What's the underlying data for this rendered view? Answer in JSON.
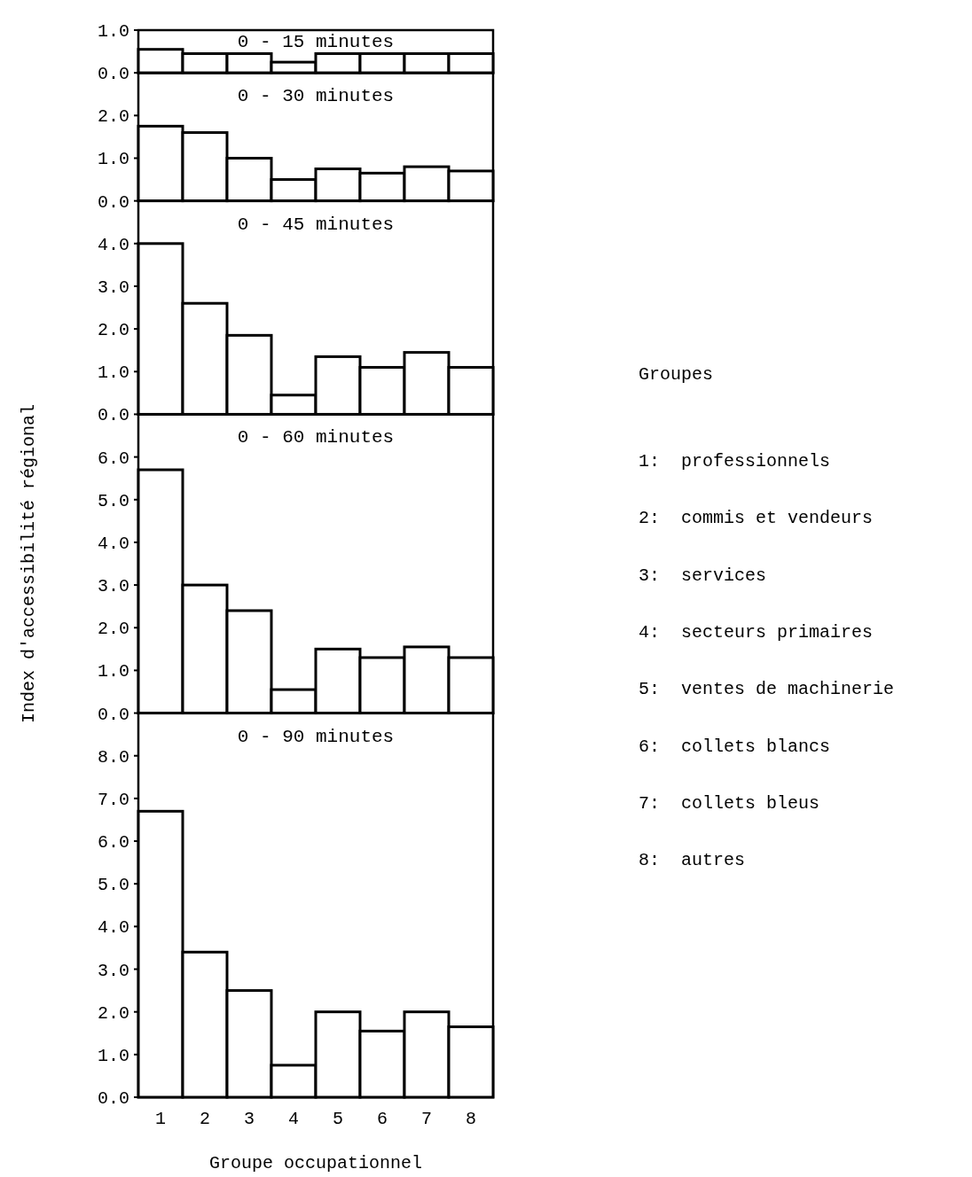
{
  "chart_data": [
    {
      "type": "bar",
      "title": "0 - 15 minutes",
      "categories": [
        "1",
        "2",
        "3",
        "4",
        "5",
        "6",
        "7",
        "8"
      ],
      "values": [
        0.55,
        0.45,
        0.45,
        0.25,
        0.45,
        0.45,
        0.45,
        0.45
      ],
      "color": "#ffffff",
      "ylim": [
        0,
        1
      ],
      "yticks": [
        {
          "value": 0,
          "label": "0.0"
        },
        {
          "value": 1,
          "label": "1.0"
        }
      ],
      "tick_labels": "y"
    },
    {
      "type": "bar",
      "title": "0 - 30 minutes",
      "categories": [
        "1",
        "2",
        "3",
        "4",
        "5",
        "6",
        "7",
        "8"
      ],
      "values": [
        1.75,
        1.6,
        1.0,
        0.5,
        0.75,
        0.65,
        0.8,
        0.7
      ],
      "color": "#ffffff",
      "ylim": [
        0,
        3
      ],
      "yticks": [
        {
          "value": 0,
          "label": "0.0"
        },
        {
          "value": 1,
          "label": "1.0"
        },
        {
          "value": 2,
          "label": "2.0"
        }
      ],
      "tick_labels": "y"
    },
    {
      "type": "bar",
      "title": "0 - 45 minutes",
      "categories": [
        "1",
        "2",
        "3",
        "4",
        "5",
        "6",
        "7",
        "8"
      ],
      "values": [
        4.0,
        2.6,
        1.85,
        0.45,
        1.35,
        1.1,
        1.45,
        1.1
      ],
      "color": "#ffffff",
      "ylim": [
        0,
        5
      ],
      "yticks": [
        {
          "value": 0,
          "label": "0.0"
        },
        {
          "value": 1,
          "label": "1.0"
        },
        {
          "value": 2,
          "label": "2.0"
        },
        {
          "value": 3,
          "label": "3.0"
        },
        {
          "value": 4,
          "label": "4.0"
        }
      ],
      "tick_labels": "y"
    },
    {
      "type": "bar",
      "title": "0 - 60 minutes",
      "categories": [
        "1",
        "2",
        "3",
        "4",
        "5",
        "6",
        "7",
        "8"
      ],
      "values": [
        5.7,
        3.0,
        2.4,
        0.55,
        1.5,
        1.3,
        1.55,
        1.3
      ],
      "color": "#ffffff",
      "ylim": [
        0,
        7
      ],
      "yticks": [
        {
          "value": 0,
          "label": "0.0"
        },
        {
          "value": 1,
          "label": "1.0"
        },
        {
          "value": 2,
          "label": "2.0"
        },
        {
          "value": 3,
          "label": "3.0"
        },
        {
          "value": 4,
          "label": "4.0"
        },
        {
          "value": 5,
          "label": "5.0"
        },
        {
          "value": 6,
          "label": "6.0"
        }
      ],
      "tick_labels": "y",
      "ylabel": "Index d'accessibilité régional"
    },
    {
      "type": "bar",
      "title": "0 - 90 minutes",
      "categories": [
        "1",
        "2",
        "3",
        "4",
        "5",
        "6",
        "7",
        "8"
      ],
      "values": [
        6.7,
        3.4,
        2.5,
        0.75,
        2.0,
        1.55,
        2.0,
        1.65
      ],
      "color": "#ffffff",
      "ylim": [
        0,
        9
      ],
      "yticks": [
        {
          "value": 0,
          "label": "0.0"
        },
        {
          "value": 1,
          "label": "1.0"
        },
        {
          "value": 2,
          "label": "2.0"
        },
        {
          "value": 3,
          "label": "3.0"
        },
        {
          "value": 4,
          "label": "4.0"
        },
        {
          "value": 5,
          "label": "5.0"
        },
        {
          "value": 6,
          "label": "6.0"
        },
        {
          "value": 7,
          "label": "7.0"
        },
        {
          "value": 8,
          "label": "8.0"
        }
      ],
      "xlabel": "Groupe occupationnel",
      "annotations": [
        "Groupes",
        "1:  professionnels",
        "2:  commis et vendeurs",
        "3:  services",
        "4:  secteurs primaires",
        "5:  ventes de machinerie",
        "6:  collets blancs",
        "7:  collets bleus",
        "8:  autres"
      ]
    }
  ]
}
